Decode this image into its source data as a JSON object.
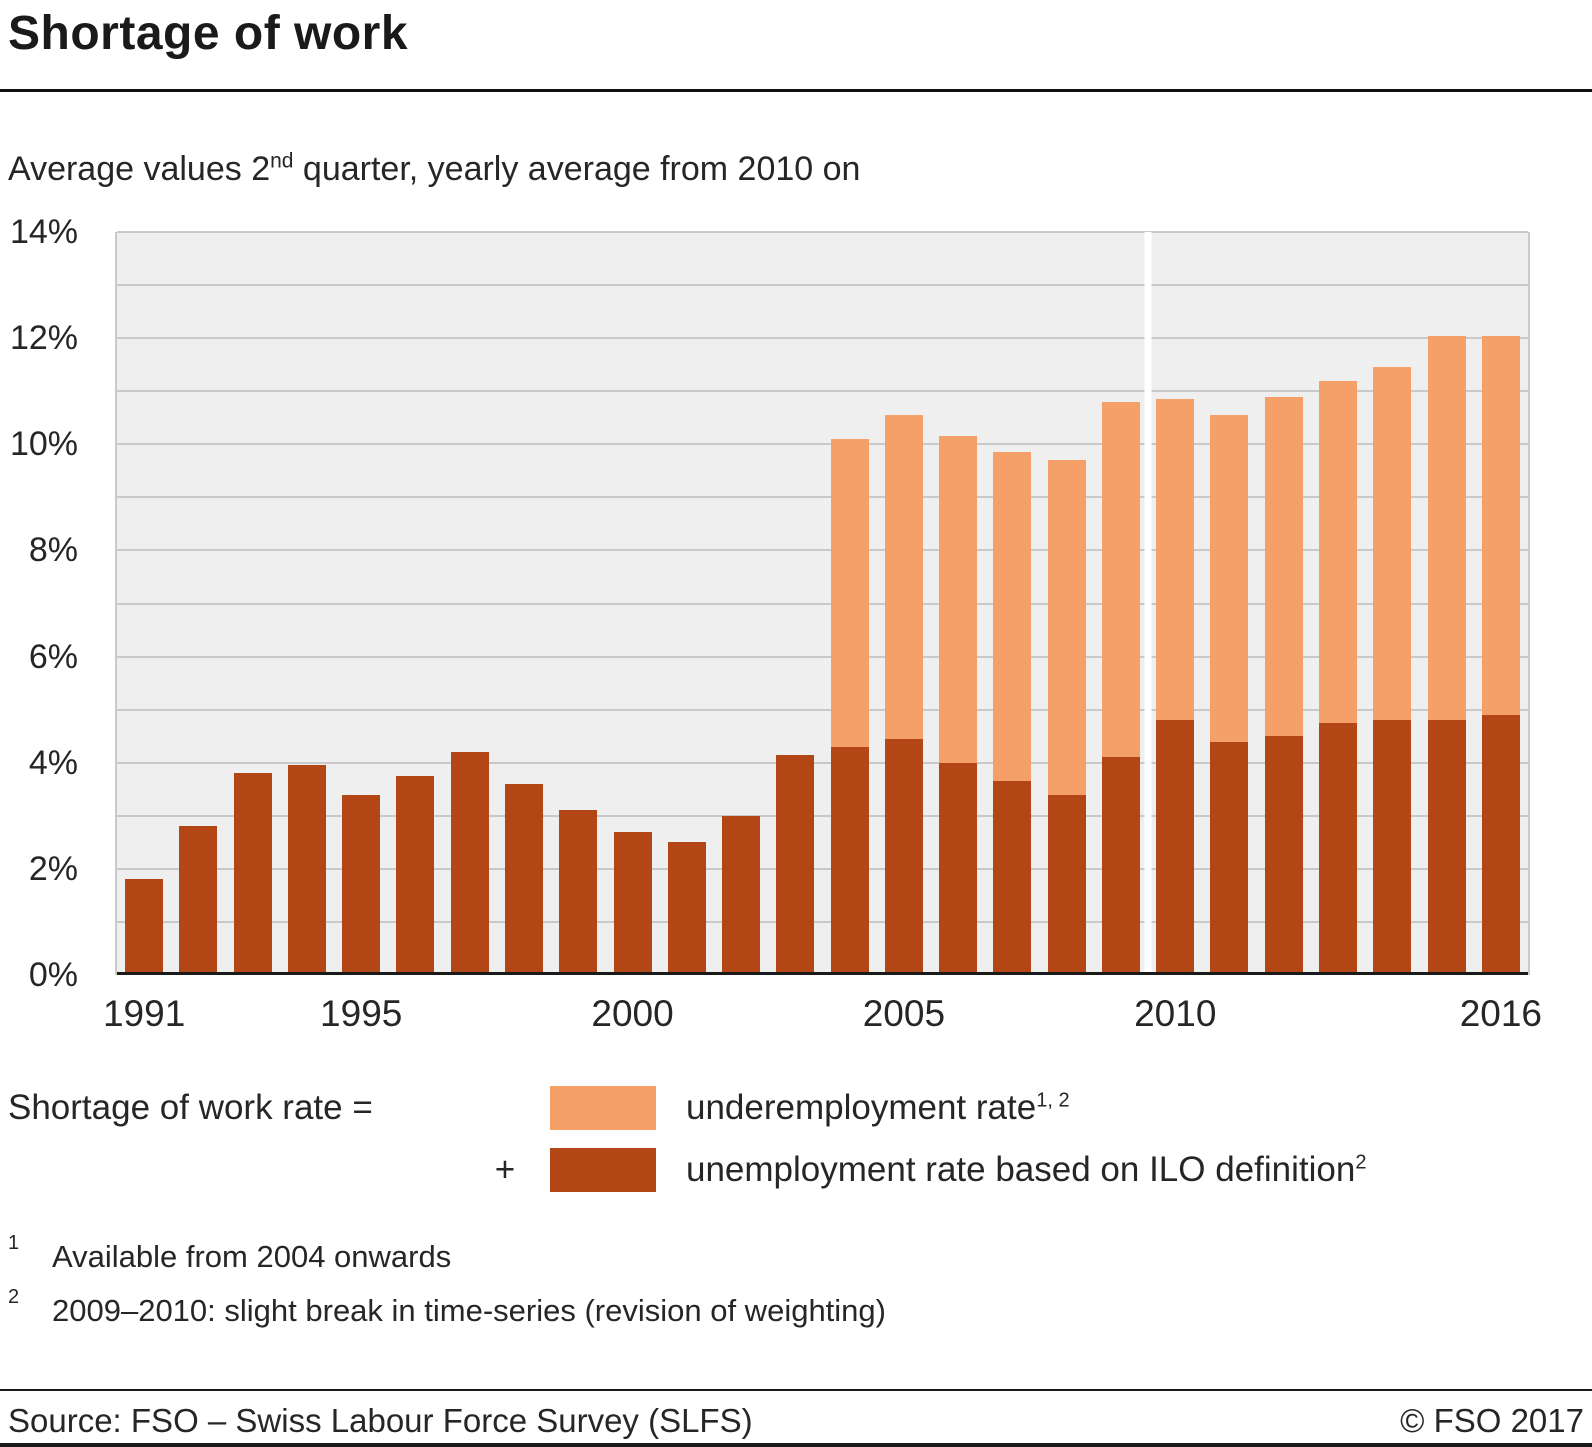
{
  "page": {
    "title": "Shortage of work",
    "subtitle": {
      "prefix": "Average values 2",
      "sup": "nd",
      "suffix": " quarter, yearly average from 2010 on"
    }
  },
  "chart_data": {
    "type": "bar",
    "stacked": true,
    "title": "Shortage of work",
    "subtitle": "Average values 2nd quarter, yearly average from 2010 on",
    "xlabel": "",
    "ylabel": "",
    "ylim": [
      0,
      14
    ],
    "y_tick_step": 2,
    "grid_step": 1,
    "y_tick_suffix": "%",
    "grid": true,
    "legend_position": "bottom",
    "plot_background": "#efefef",
    "categories": [
      1991,
      1992,
      1993,
      1994,
      1995,
      1996,
      1997,
      1998,
      1999,
      2000,
      2001,
      2002,
      2003,
      2004,
      2005,
      2006,
      2007,
      2008,
      2009,
      2010,
      2011,
      2012,
      2013,
      2014,
      2015,
      2016
    ],
    "series": [
      {
        "name": "unemployment rate based on ILO definition",
        "color": "#b24614",
        "values": [
          1.8,
          2.8,
          3.8,
          3.95,
          3.4,
          3.75,
          4.2,
          3.6,
          3.1,
          2.7,
          2.5,
          3.0,
          4.15,
          4.3,
          4.45,
          4.0,
          3.65,
          3.4,
          4.1,
          4.8,
          4.4,
          4.5,
          4.75,
          4.8,
          4.8,
          4.9
        ]
      },
      {
        "name": "underemployment rate",
        "color": "#f5a069",
        "values": [
          0,
          0,
          0,
          0,
          0,
          0,
          0,
          0,
          0,
          0,
          0,
          0,
          0,
          5.8,
          6.1,
          6.15,
          6.2,
          6.3,
          6.7,
          6.05,
          6.15,
          6.4,
          6.45,
          6.65,
          7.25,
          7.15
        ]
      }
    ],
    "totals": [
      1.8,
      2.8,
      3.8,
      3.95,
      3.4,
      3.75,
      4.2,
      3.6,
      3.1,
      2.7,
      2.5,
      3.0,
      4.15,
      10.1,
      10.55,
      10.15,
      9.85,
      9.7,
      10.8,
      10.85,
      10.55,
      10.9,
      11.2,
      11.45,
      12.05,
      12.05
    ],
    "x_ticks": [
      {
        "index": 0,
        "label": "1991"
      },
      {
        "index": 4,
        "label": "1995"
      },
      {
        "index": 9,
        "label": "2000"
      },
      {
        "index": 14,
        "label": "2005"
      },
      {
        "index": 19,
        "label": "2010"
      },
      {
        "index": 25,
        "label": "2016"
      }
    ],
    "series_break": {
      "between": [
        "2009",
        "2010"
      ],
      "gap_boundary_index": 19
    }
  },
  "legend": {
    "heading": "Shortage of work rate =",
    "plus": "+",
    "items": [
      {
        "label": "underemployment rate",
        "sup": "1, 2",
        "color": "#f5a069"
      },
      {
        "label": "unemployment rate based on ILO definition",
        "sup": "2",
        "color": "#b24614"
      }
    ]
  },
  "footnotes": [
    {
      "marker": "1",
      "text": "Available from 2004 onwards"
    },
    {
      "marker": "2",
      "text": "2009–2010: slight break in time-series (revision of weighting)"
    }
  ],
  "footer": {
    "source": "Source: FSO – Swiss Labour Force Survey (SLFS)",
    "copyright": "© FSO 2017"
  }
}
